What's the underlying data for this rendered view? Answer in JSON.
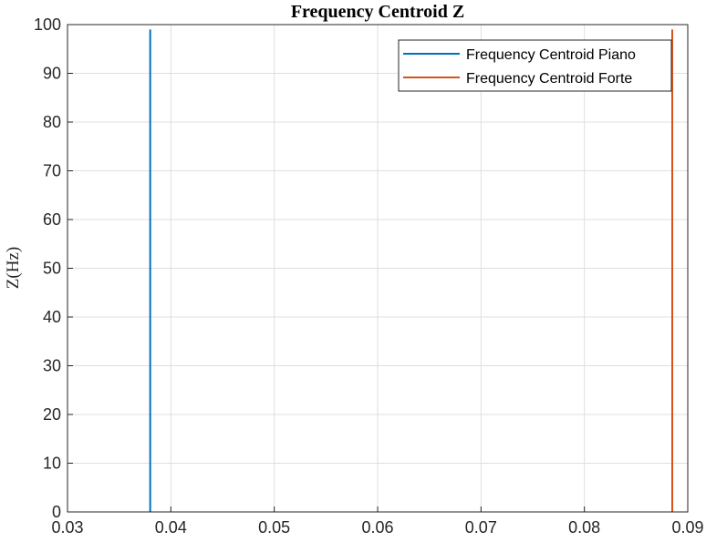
{
  "chart_data": {
    "type": "line",
    "title": "Frequency Centroid Z",
    "xlabel": "",
    "ylabel": "Z(Hz)",
    "xlim": [
      0.03,
      0.09
    ],
    "ylim": [
      0,
      100
    ],
    "xticks": [
      "0.03",
      "0.04",
      "0.05",
      "0.06",
      "0.07",
      "0.08",
      "0.09"
    ],
    "yticks": [
      "0",
      "10",
      "20",
      "30",
      "40",
      "50",
      "60",
      "70",
      "80",
      "90",
      "100"
    ],
    "grid": true,
    "legend_position": "top-right",
    "series": [
      {
        "name": "Frequency Centroid Piano",
        "color": "#0072BD",
        "x": [
          0.038,
          0.038
        ],
        "y": [
          0,
          99
        ]
      },
      {
        "name": "Frequency Centroid Forte",
        "color": "#D95319",
        "x": [
          0.0885,
          0.0885
        ],
        "y": [
          0,
          99
        ]
      }
    ]
  }
}
